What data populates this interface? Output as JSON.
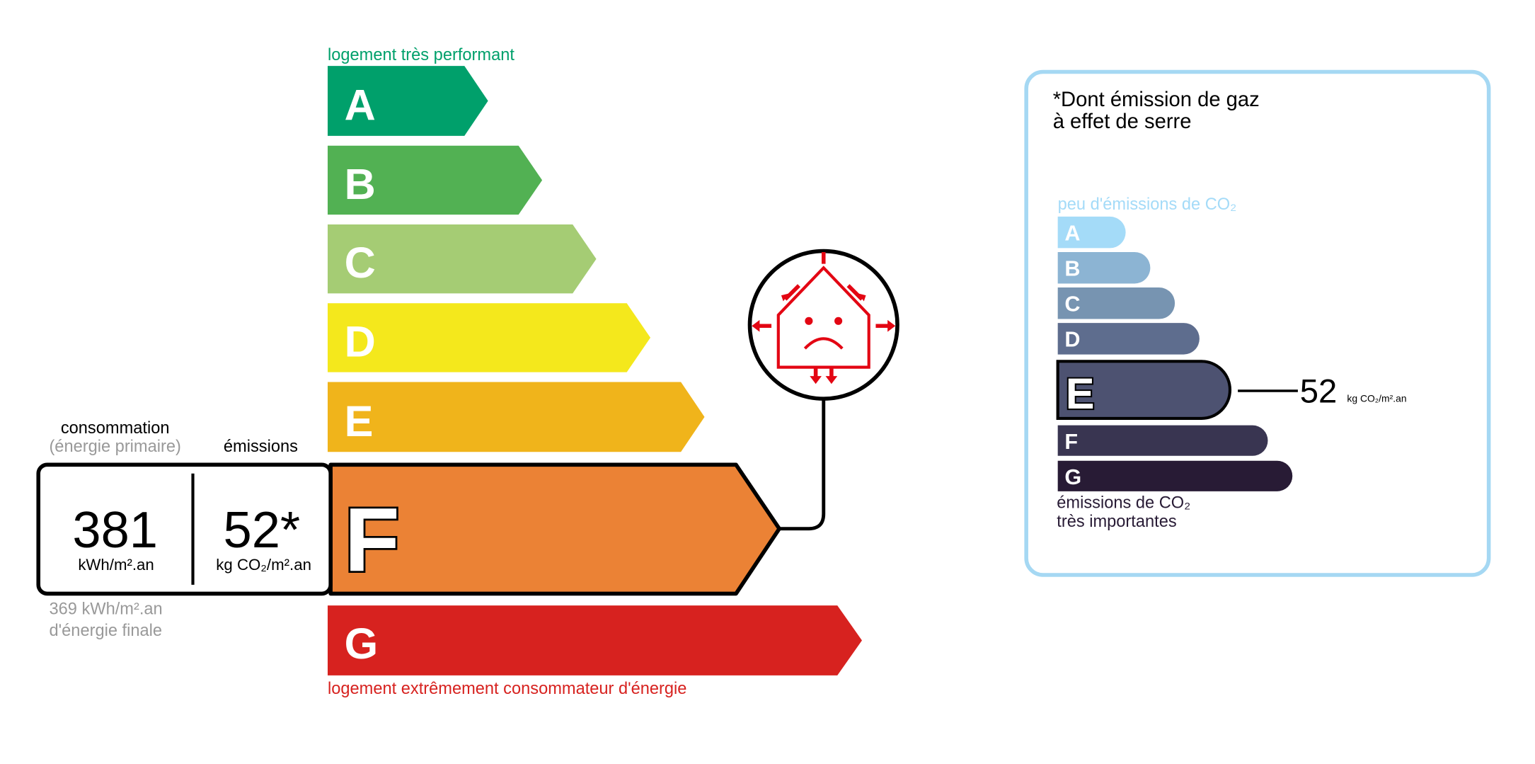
{
  "energy": {
    "top_label": "logement très performant",
    "bottom_label": "logement extrêmement consommateur d'énergie",
    "classes": [
      {
        "letter": "A",
        "color": "#00a06b"
      },
      {
        "letter": "B",
        "color": "#52b153"
      },
      {
        "letter": "C",
        "color": "#a5cc74"
      },
      {
        "letter": "D",
        "color": "#f4e81c"
      },
      {
        "letter": "E",
        "color": "#f0b41b"
      },
      {
        "letter": "F",
        "color": "#eb8235"
      },
      {
        "letter": "G",
        "color": "#d7221f"
      }
    ],
    "current_class": "F",
    "consumption_label": "consommation",
    "consumption_sub": "(énergie primaire)",
    "emissions_label": "émissions",
    "consumption_value": "381",
    "consumption_unit": "kWh/m².an",
    "emissions_value": "52*",
    "emissions_unit": "kg CO₂/m².an",
    "final_energy_value": "369 kWh/m².an",
    "final_energy_label": "d'énergie finale",
    "icon": "poorly-insulated-house-icon",
    "icon_color": "#e30613"
  },
  "ghg": {
    "title_line1": "*Dont émission de gaz",
    "title_line2": "à effet de serre",
    "top_label": "peu d'émissions de CO₂",
    "bottom_label_line1": "émissions de CO₂",
    "bottom_label_line2": "très importantes",
    "classes": [
      {
        "letter": "A",
        "color": "#a4dbf8"
      },
      {
        "letter": "B",
        "color": "#8cb4d3"
      },
      {
        "letter": "C",
        "color": "#7794b1"
      },
      {
        "letter": "D",
        "color": "#5e6d8e"
      },
      {
        "letter": "E",
        "color": "#4d5271"
      },
      {
        "letter": "F",
        "color": "#393551"
      },
      {
        "letter": "G",
        "color": "#281b35"
      }
    ],
    "current_class": "E",
    "value": "52",
    "unit": "kg CO₂/m².an",
    "border_color": "#a5d8f3"
  }
}
